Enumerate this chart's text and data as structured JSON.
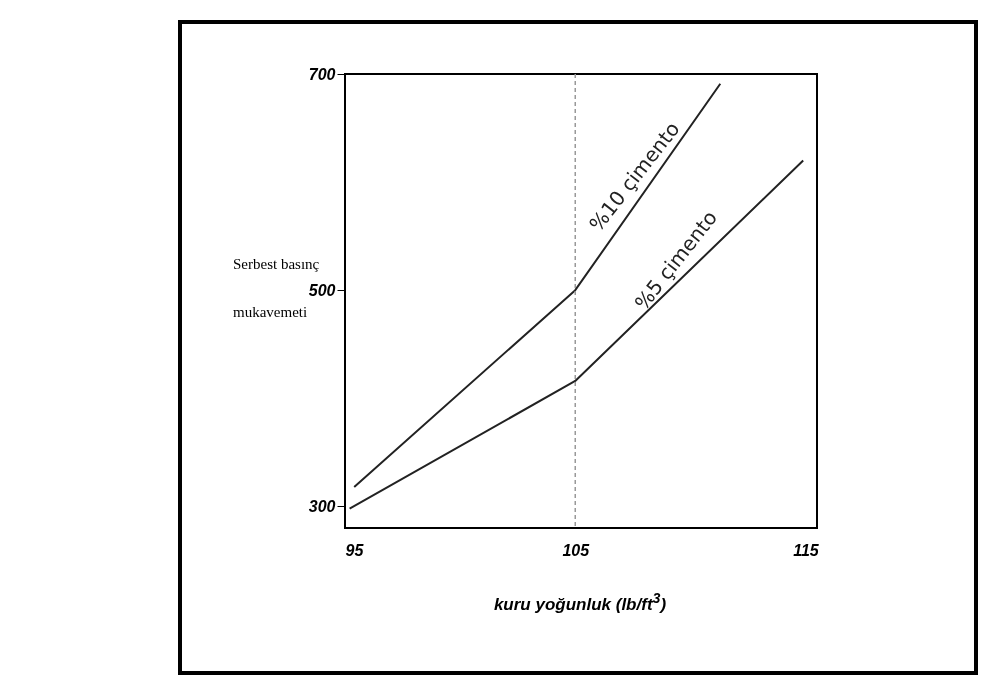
{
  "chart_data": {
    "type": "line",
    "xlabel": "kuru yoğunluk (lb/ft$^{3}$)",
    "ylabel": "Serbest basınç mukavemeti",
    "xlim": [
      95,
      115.5
    ],
    "xticks": [
      95,
      105,
      115
    ],
    "ylim": [
      280,
      700
    ],
    "yticks": [
      300,
      500,
      700
    ],
    "grid": false,
    "legend": false,
    "series": [
      {
        "name": "%10 çimento",
        "color": "#222222",
        "x": [
          95.4,
          105,
          111.3
        ],
        "values": [
          318,
          500,
          691
        ]
      },
      {
        "name": "%5 çimento",
        "color": "#222222",
        "x": [
          95.2,
          105,
          114.9
        ],
        "values": [
          298,
          416,
          620
        ]
      }
    ],
    "ref_lines": [
      {
        "axis": "x",
        "value": 105,
        "color": "#999999",
        "line_style": "dashed"
      }
    ]
  }
}
